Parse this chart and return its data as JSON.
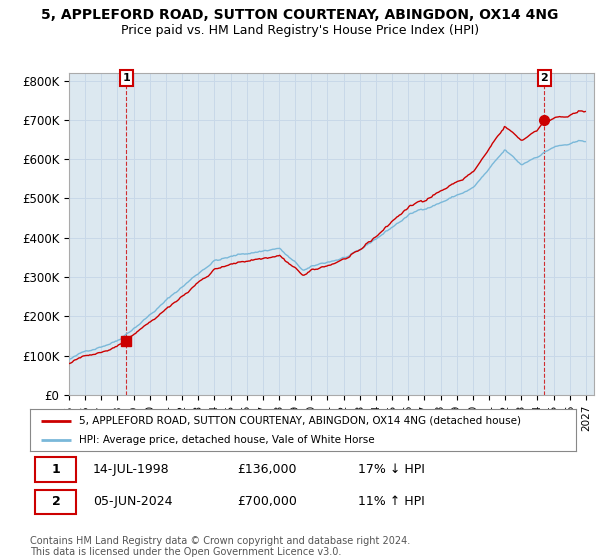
{
  "title": "5, APPLEFORD ROAD, SUTTON COURTENAY, ABINGDON, OX14 4NG",
  "subtitle": "Price paid vs. HM Land Registry's House Price Index (HPI)",
  "ylim": [
    0,
    820000
  ],
  "yticks": [
    0,
    100000,
    200000,
    300000,
    400000,
    500000,
    600000,
    700000,
    800000
  ],
  "ytick_labels": [
    "£0",
    "£100K",
    "£200K",
    "£300K",
    "£400K",
    "£500K",
    "£600K",
    "£700K",
    "£800K"
  ],
  "sale1_date": 1998.54,
  "sale1_price": 136000,
  "sale1_label": "1",
  "sale2_date": 2024.43,
  "sale2_price": 700000,
  "sale2_label": "2",
  "hpi_color": "#7ab8d9",
  "sale_color": "#cc0000",
  "annotation_box_color": "#cc0000",
  "grid_color": "#c8d8e8",
  "background_color": "#dce8f0",
  "plot_bg_color": "#dce8f0",
  "legend_line1": "5, APPLEFORD ROAD, SUTTON COURTENAY, ABINGDON, OX14 4NG (detached house)",
  "legend_line2": "HPI: Average price, detached house, Vale of White Horse",
  "table_row1": [
    "1",
    "14-JUL-1998",
    "£136,000",
    "17% ↓ HPI"
  ],
  "table_row2": [
    "2",
    "05-JUN-2024",
    "£700,000",
    "11% ↑ HPI"
  ],
  "footer": "Contains HM Land Registry data © Crown copyright and database right 2024.\nThis data is licensed under the Open Government Licence v3.0.",
  "title_fontsize": 10,
  "subtitle_fontsize": 9
}
